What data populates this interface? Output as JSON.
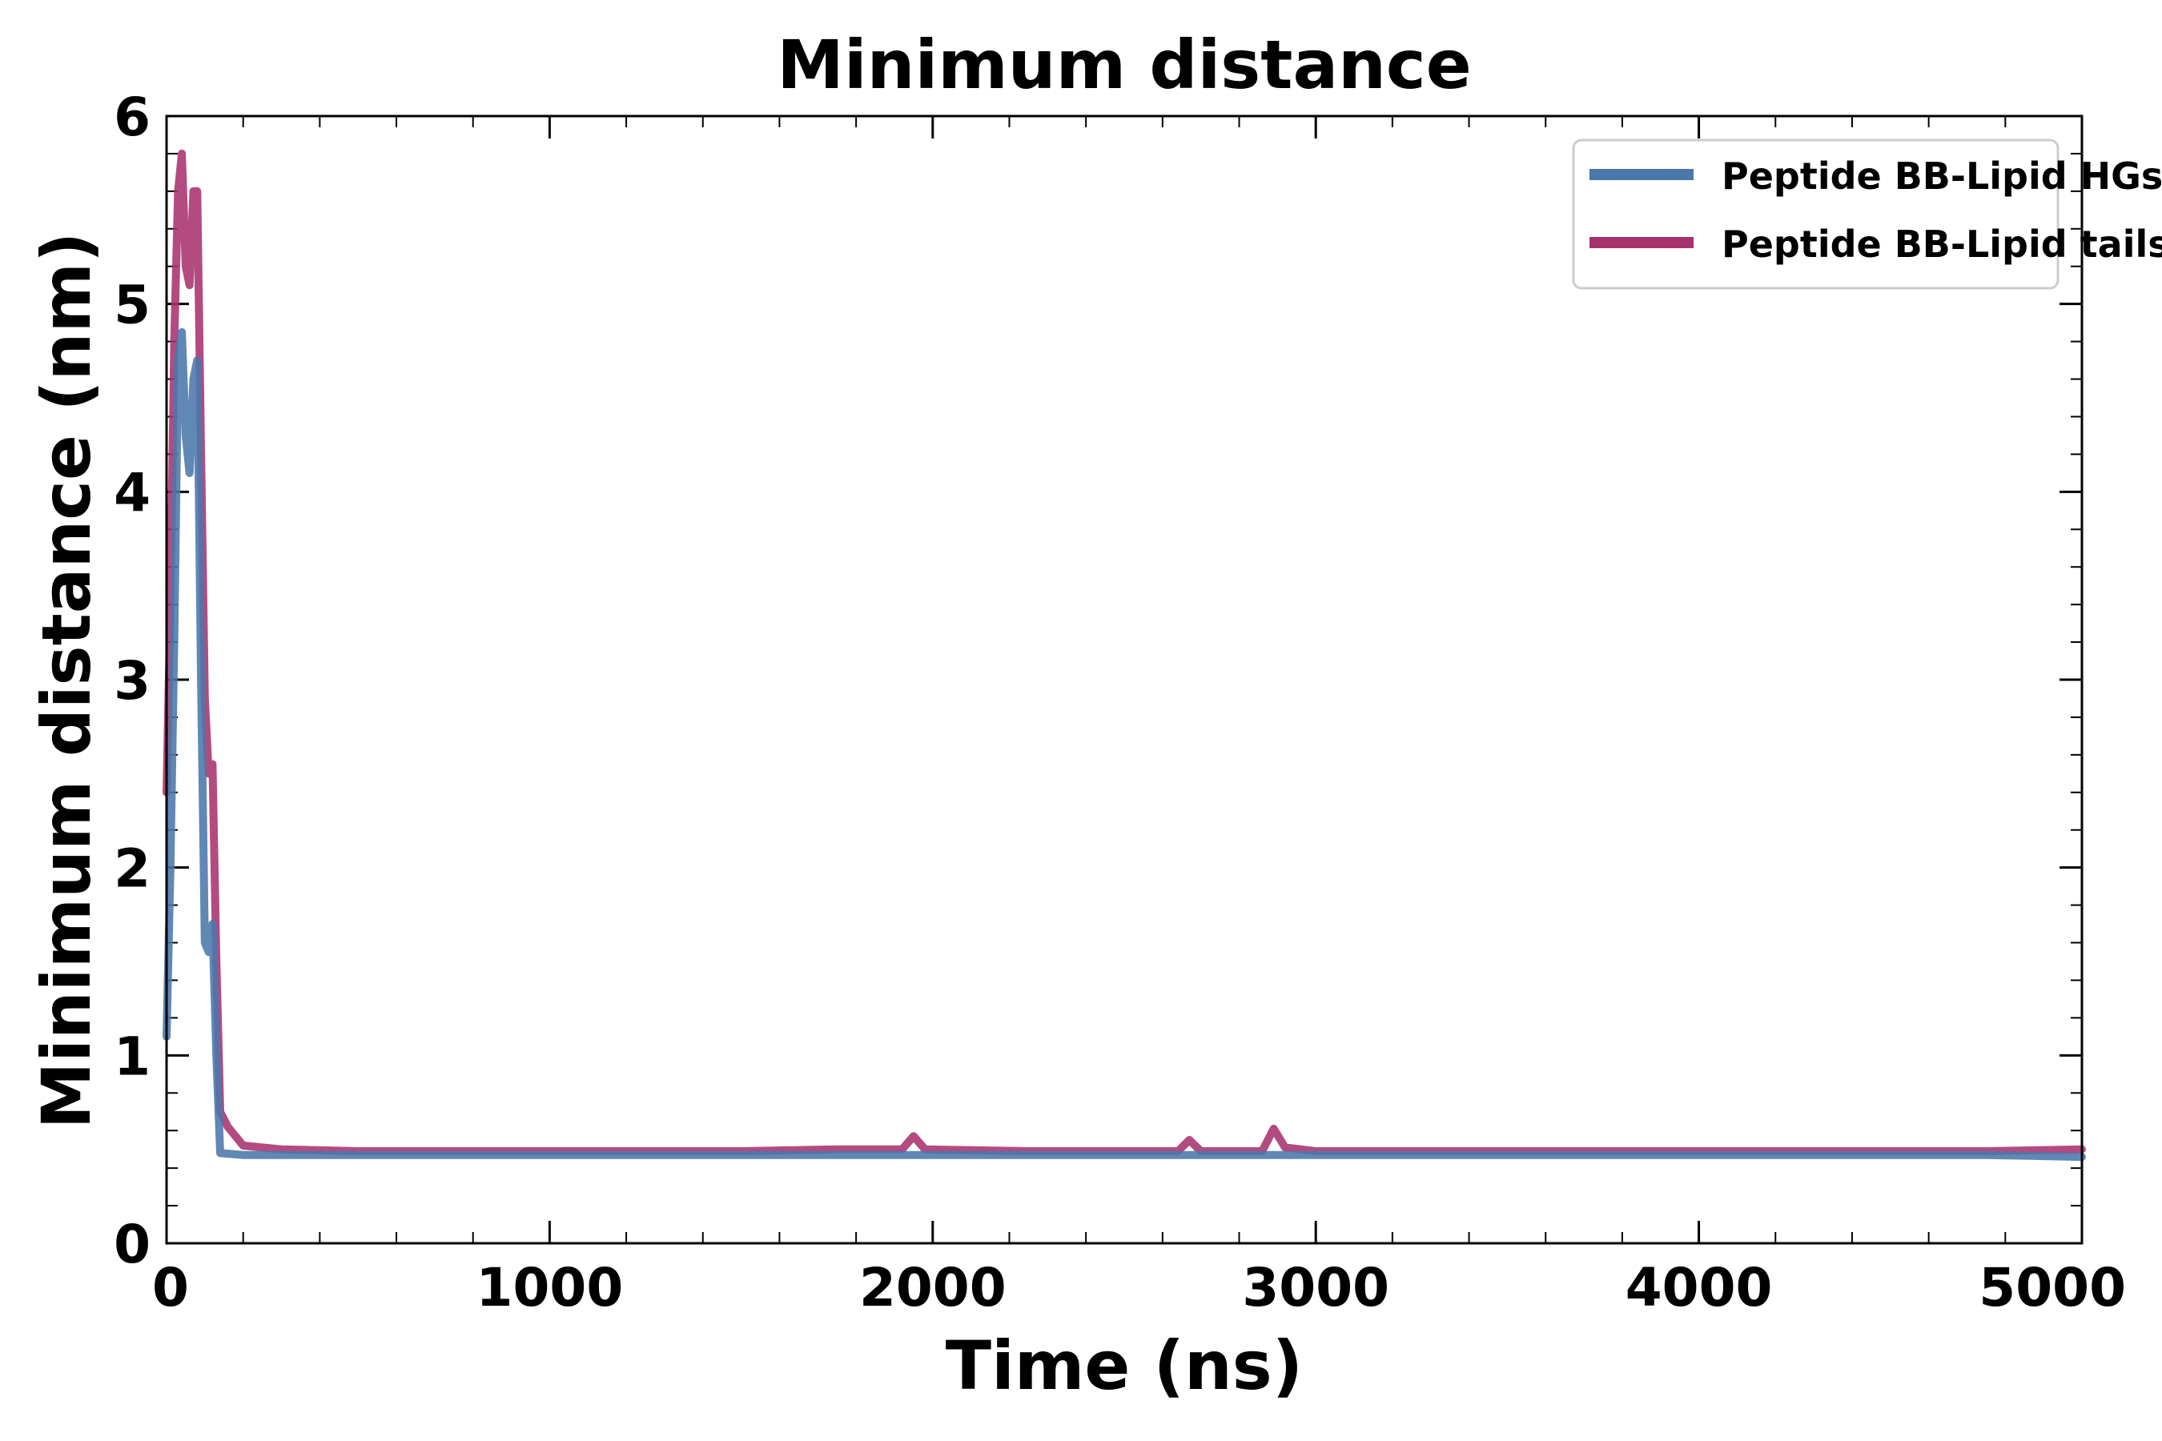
{
  "chart_data": {
    "type": "line",
    "title": "Minimum distance",
    "xlabel": "Time (ns)",
    "ylabel": "Minimum distance (nm)",
    "xlim": [
      0,
      5000
    ],
    "ylim": [
      0,
      6
    ],
    "xticks": [
      0,
      1000,
      2000,
      3000,
      4000,
      5000
    ],
    "yticks": [
      0,
      1,
      2,
      3,
      4,
      5,
      6
    ],
    "xtick_labels": [
      "0",
      "1000",
      "2000",
      "3000",
      "4000",
      "5000"
    ],
    "ytick_labels": [
      "0",
      "1",
      "2",
      "3",
      "4",
      "5",
      "6"
    ],
    "x_minor_step": 200,
    "y_minor_step": 0.2,
    "grid": false,
    "legend_position": "top-right",
    "series": [
      {
        "name": "Peptide BB-Lipid HGs",
        "color": "#4a78aa",
        "points": [
          [
            0,
            1.1
          ],
          [
            10,
            2.0
          ],
          [
            20,
            3.2
          ],
          [
            30,
            4.7
          ],
          [
            40,
            4.85
          ],
          [
            50,
            4.3
          ],
          [
            60,
            4.1
          ],
          [
            70,
            4.6
          ],
          [
            80,
            4.7
          ],
          [
            90,
            3.0
          ],
          [
            100,
            1.6
          ],
          [
            110,
            1.55
          ],
          [
            120,
            1.7
          ],
          [
            130,
            1.0
          ],
          [
            140,
            0.48
          ],
          [
            200,
            0.47
          ],
          [
            300,
            0.47
          ],
          [
            500,
            0.47
          ],
          [
            750,
            0.47
          ],
          [
            1000,
            0.47
          ],
          [
            1250,
            0.47
          ],
          [
            1500,
            0.47
          ],
          [
            1750,
            0.47
          ],
          [
            2000,
            0.47
          ],
          [
            2250,
            0.47
          ],
          [
            2500,
            0.47
          ],
          [
            2750,
            0.47
          ],
          [
            3000,
            0.47
          ],
          [
            3250,
            0.47
          ],
          [
            3500,
            0.47
          ],
          [
            3750,
            0.47
          ],
          [
            4000,
            0.47
          ],
          [
            4250,
            0.47
          ],
          [
            4500,
            0.47
          ],
          [
            4750,
            0.47
          ],
          [
            5000,
            0.46
          ]
        ]
      },
      {
        "name": "Peptide BB-Lipid tails",
        "color": "#a8326e",
        "points": [
          [
            0,
            2.4
          ],
          [
            10,
            3.4
          ],
          [
            20,
            4.8
          ],
          [
            30,
            5.6
          ],
          [
            40,
            5.8
          ],
          [
            50,
            5.2
          ],
          [
            60,
            5.1
          ],
          [
            70,
            5.6
          ],
          [
            80,
            5.6
          ],
          [
            90,
            4.2
          ],
          [
            100,
            2.9
          ],
          [
            110,
            2.5
          ],
          [
            120,
            2.55
          ],
          [
            130,
            1.5
          ],
          [
            140,
            0.7
          ],
          [
            160,
            0.62
          ],
          [
            200,
            0.52
          ],
          [
            300,
            0.5
          ],
          [
            500,
            0.49
          ],
          [
            750,
            0.49
          ],
          [
            1000,
            0.49
          ],
          [
            1250,
            0.49
          ],
          [
            1500,
            0.49
          ],
          [
            1750,
            0.5
          ],
          [
            1920,
            0.5
          ],
          [
            1950,
            0.57
          ],
          [
            1980,
            0.5
          ],
          [
            2250,
            0.49
          ],
          [
            2500,
            0.49
          ],
          [
            2640,
            0.49
          ],
          [
            2670,
            0.55
          ],
          [
            2700,
            0.49
          ],
          [
            2860,
            0.49
          ],
          [
            2890,
            0.61
          ],
          [
            2920,
            0.51
          ],
          [
            3000,
            0.49
          ],
          [
            3250,
            0.49
          ],
          [
            3500,
            0.49
          ],
          [
            3750,
            0.49
          ],
          [
            4000,
            0.49
          ],
          [
            4250,
            0.49
          ],
          [
            4500,
            0.49
          ],
          [
            4750,
            0.49
          ],
          [
            5000,
            0.5
          ]
        ]
      }
    ]
  }
}
